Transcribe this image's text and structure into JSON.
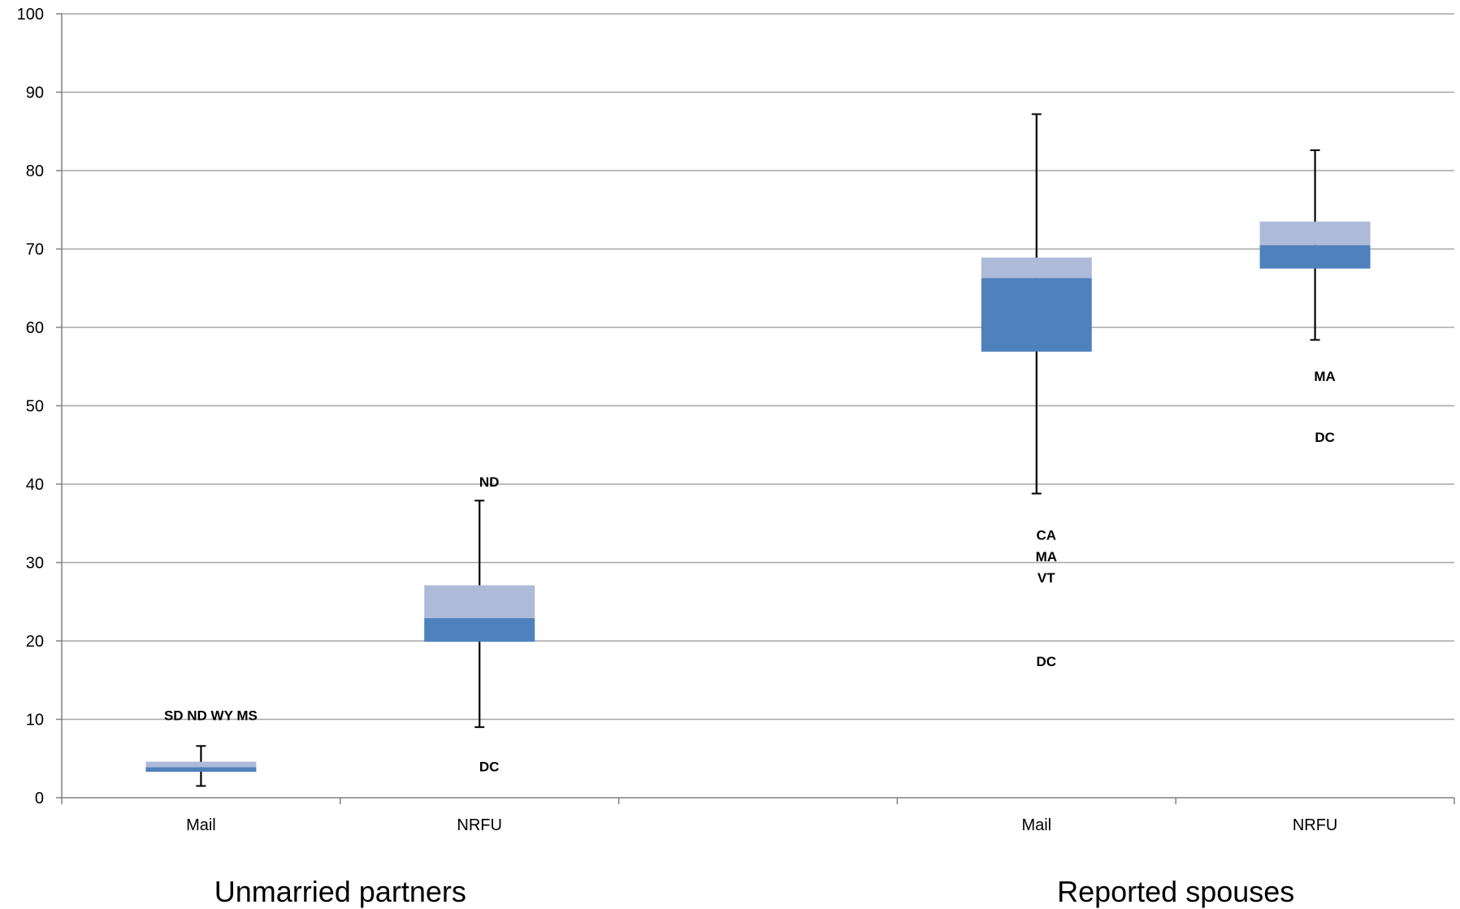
{
  "chart_data": {
    "type": "box",
    "ylim": [
      0,
      100
    ],
    "yticks": [
      "0",
      "10",
      "20",
      "30",
      "40",
      "50",
      "60",
      "70",
      "80",
      "90",
      "100"
    ],
    "grid": true,
    "colors": {
      "lower_box": "#4f81bd",
      "upper_box": "#adbad8",
      "whisker": "#000000",
      "grid": "#a6a6a6"
    },
    "categories": [
      "Mail",
      "NRFU",
      "Mail",
      "NRFU"
    ],
    "groups": [
      "Unmarried partners",
      "Reported spouses"
    ],
    "boxes": [
      {
        "group": "Unmarried partners",
        "category": "Mail",
        "min": 1.5,
        "q1": 3.3,
        "median": 3.9,
        "q3": 4.6,
        "max": 6.6,
        "outliers": [
          {
            "label": "SD ND WY MS",
            "value": 10.5
          }
        ]
      },
      {
        "group": "Unmarried partners",
        "category": "NRFU",
        "min": 9.0,
        "q1": 19.9,
        "median": 22.9,
        "q3": 27.1,
        "max": 37.9,
        "outliers": [
          {
            "label": "ND",
            "value": 40.3
          },
          {
            "label": "DC",
            "value": 4.0
          }
        ]
      },
      {
        "group": "Reported spouses",
        "category": "Mail",
        "min": 38.8,
        "q1": 56.9,
        "median": 66.3,
        "q3": 68.9,
        "max": 87.2,
        "outliers": [
          {
            "label": "CA",
            "value": 33.5
          },
          {
            "label": "MA",
            "value": 30.8
          },
          {
            "label": "VT",
            "value": 28.1
          },
          {
            "label": "DC",
            "value": 17.4
          }
        ]
      },
      {
        "group": "Reported spouses",
        "category": "NRFU",
        "min": 58.4,
        "q1": 67.5,
        "median": 70.5,
        "q3": 73.5,
        "max": 82.6,
        "outliers": [
          {
            "label": "MA",
            "value": 53.8
          },
          {
            "label": "DC",
            "value": 46.0
          }
        ]
      }
    ]
  }
}
